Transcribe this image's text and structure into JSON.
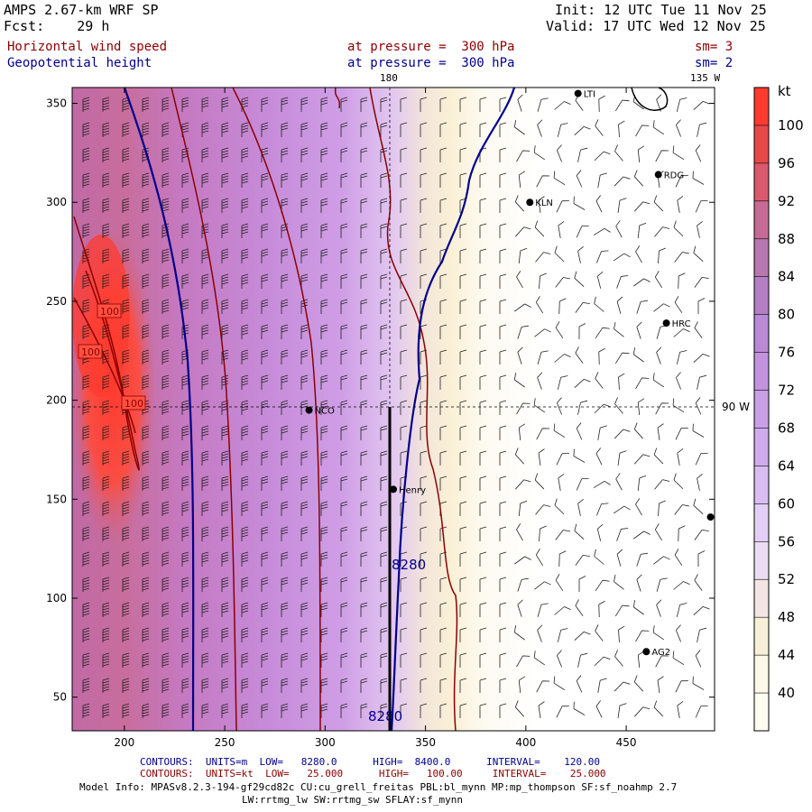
{
  "header": {
    "model": "AMPS 2.67-km WRF SP",
    "fcst": "Fcst:    29 h",
    "init": "Init: 12 UTC Tue 11 Nov 25",
    "valid": "Valid: 17 UTC Wed 12 Nov 25",
    "field1_name": "Horizontal wind speed",
    "field1_level": "at pressure =  300 hPa",
    "field1_sm": "sm= 3",
    "field2_name": "Geopotential height",
    "field2_level": "at pressure =  300 hPa",
    "field2_sm": "sm= 2",
    "lon_label_top": "180",
    "lon_label_right_top": "135 W",
    "lon_label_right": "90 W"
  },
  "map": {
    "x_ticks": [
      200,
      250,
      300,
      350,
      400,
      450
    ],
    "y_ticks": [
      50,
      100,
      150,
      200,
      250,
      300,
      350
    ],
    "x_range": [
      174,
      494
    ],
    "y_range": [
      33,
      358
    ],
    "stations": [
      {
        "name": "LTI",
        "x": 426,
        "y": 355
      },
      {
        "name": "RDG",
        "x": 466,
        "y": 314
      },
      {
        "name": "KLN",
        "x": 402,
        "y": 300
      },
      {
        "name": "HRC",
        "x": 470,
        "y": 239
      },
      {
        "name": "NCO",
        "x": 292,
        "y": 195
      },
      {
        "name": "Henry",
        "x": 334,
        "y": 155
      },
      {
        "name": "AG2",
        "x": 460,
        "y": 73
      },
      {
        "name": "",
        "x": 492,
        "y": 141
      }
    ],
    "contour_labels": {
      "speed_100_a": "100",
      "speed_100_b": "100",
      "speed_100_c": "100",
      "height_8280_a": "8280",
      "height_8280_b": "8280"
    }
  },
  "legend": {
    "units": "kt",
    "labels": [
      "100",
      "96",
      "92",
      "88",
      "84",
      "80",
      "76",
      "72",
      "68",
      "64",
      "60",
      "56",
      "52",
      "48",
      "44",
      "40"
    ],
    "colors": [
      "#ff3b2f",
      "#e84848",
      "#d85a6c",
      "#c86a96",
      "#b877ae",
      "#b47fc4",
      "#b98ad6",
      "#c493e0",
      "#c99fe6",
      "#d0aced",
      "#d9bdf2",
      "#e3cff5",
      "#ecdcf3",
      "#f4e5e4",
      "#f8efd8",
      "#fdf8e8",
      "#fffcf2"
    ]
  },
  "footer": {
    "contours1": "CONTOURS:  UNITS=m  LOW=   8280.0      HIGH=  8400.0      INTERVAL=    120.00",
    "contours2": "CONTOURS:  UNITS=kt  LOW=   25.000      HIGH=   100.00     INTERVAL=    25.000",
    "model_info": "Model Info: MPASv8.2.3-194-gf29cd82c CU:cu_grell_freitas PBL:bl_mynn MP:mp_thompson SF:sf_noahmp 2.7",
    "model_info2": "LW:rrtmg_lw SW:rrtmg_sw SFLAY:sf_mynn"
  }
}
